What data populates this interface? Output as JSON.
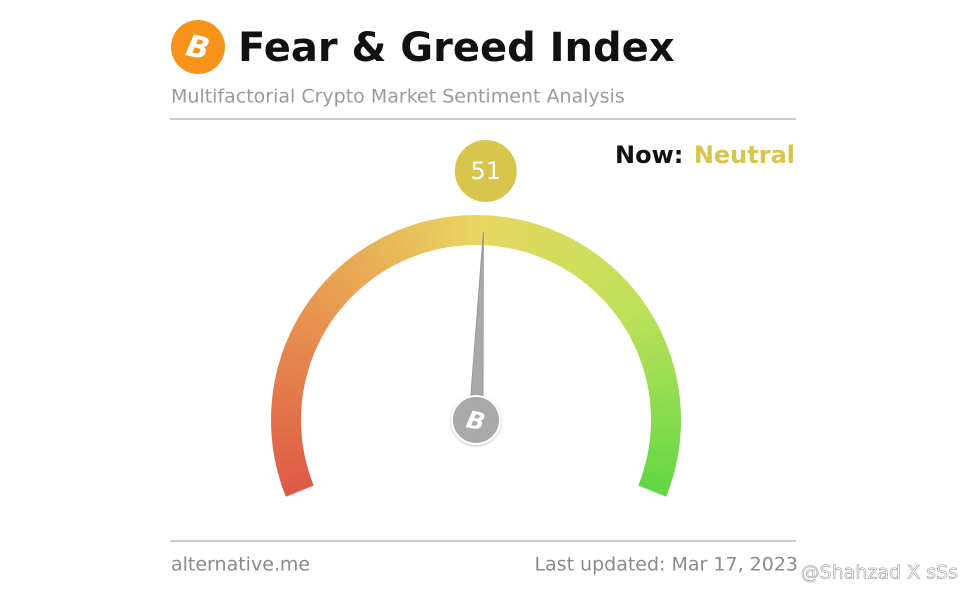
{
  "chart_data": {
    "type": "gauge",
    "title": "Fear & Greed Index",
    "subtitle": "Multifactorial Crypto Market Sentiment Analysis",
    "status_prefix": "Now:",
    "status": "Neutral",
    "status_color": "#d8c64c",
    "value": 51,
    "ylim": [
      0,
      100
    ],
    "source": "alternative.me",
    "updated": "Last updated: Mar 17, 2023",
    "watermark": "@Shahzad X sSs"
  }
}
